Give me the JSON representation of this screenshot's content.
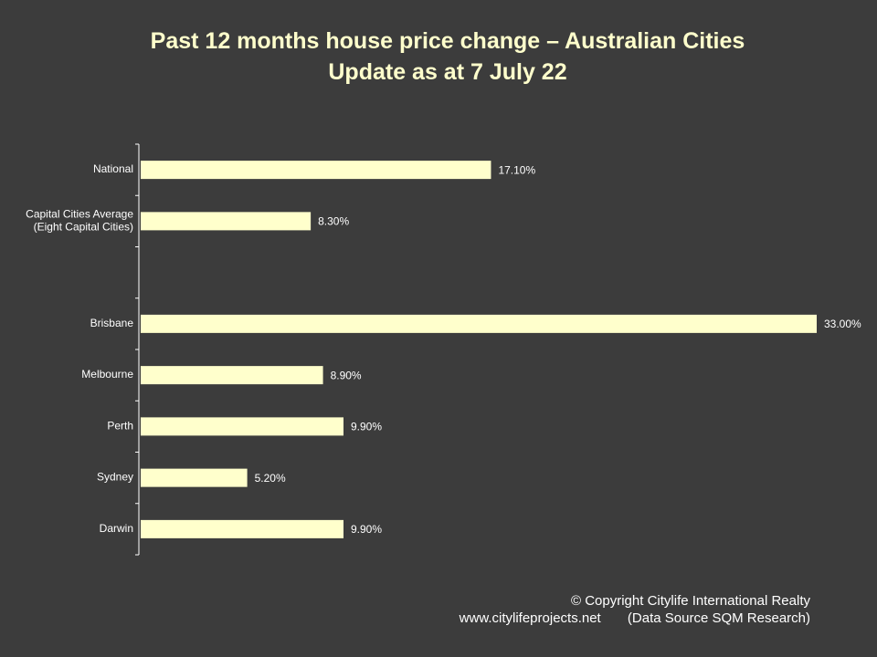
{
  "title": {
    "line1": "Past 12 months house price change – Australian Cities",
    "line2": "Update as at 7 July 22"
  },
  "chart_data": {
    "type": "bar",
    "orientation": "horizontal",
    "categories": [
      "National",
      "Capital Cities Average\n(Eight Capital Cities)",
      "",
      "Brisbane",
      "Melbourne",
      "Perth",
      "Sydney",
      "Darwin"
    ],
    "values": [
      17.1,
      8.3,
      null,
      33.0,
      8.9,
      9.9,
      5.2,
      9.9
    ],
    "data_labels": [
      "17.10%",
      "8.30%",
      "",
      "33.00%",
      "8.90%",
      "9.90%",
      "5.20%",
      "9.90%"
    ],
    "xlim": [
      0,
      33
    ],
    "bar_color": "#ffffcc",
    "grid": false,
    "legend": "none"
  },
  "footer": {
    "copyright": "© Copyright Citylife International  Realty",
    "website": "www.citylifeprojects.net",
    "source": "(Data Source SQM Research)"
  },
  "colors": {
    "background": "#3c3c3c",
    "title": "#ffffcc",
    "axis_text": "#ffffff"
  }
}
